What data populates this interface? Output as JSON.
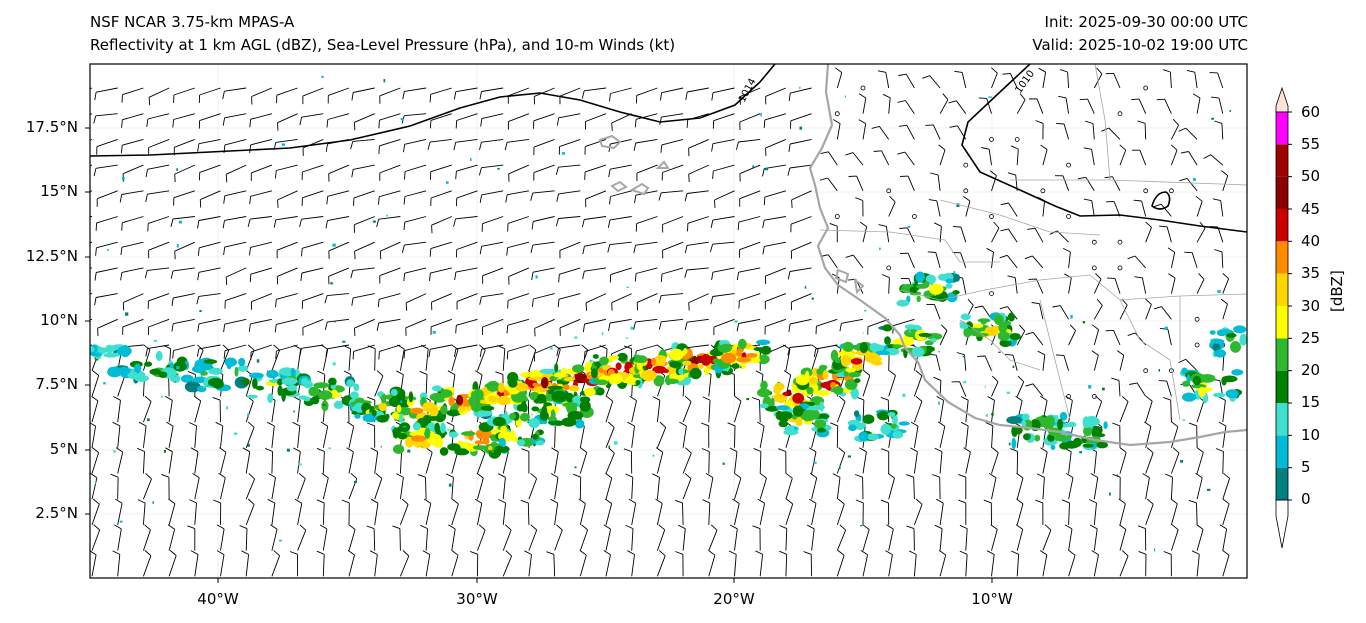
{
  "header": {
    "model": "NSF NCAR 3.75-km MPAS-A",
    "fields": "Reflectivity at 1 km AGL (dBZ), Sea-Level Pressure (hPa), and 10-m Winds (kt)",
    "init": "Init: 2025-09-30 00:00 UTC",
    "valid": "Valid: 2025-10-02 19:00 UTC"
  },
  "axes": {
    "lat_labels": [
      "17.5°N",
      "15°N",
      "12.5°N",
      "10°N",
      "7.5°N",
      "5°N",
      "2.5°N"
    ],
    "lon_labels": [
      "40°W",
      "30°W",
      "20°W",
      "10°W"
    ]
  },
  "isobars": {
    "labels": [
      "1014",
      "1010"
    ]
  },
  "colorbar": {
    "label": "[dBZ]",
    "ticks": [
      "0",
      "5",
      "10",
      "15",
      "20",
      "25",
      "30",
      "35",
      "40",
      "45",
      "50",
      "55",
      "60"
    ],
    "colors": [
      "#008080",
      "#00bcd4",
      "#40e0d0",
      "#008000",
      "#2eb82e",
      "#ffff00",
      "#ffd700",
      "#ff8c00",
      "#cc0000",
      "#8b0000",
      "#a00000",
      "#ff00ff",
      "#ffe4d6"
    ]
  },
  "colors": {
    "coastline": "#a6a6a6",
    "isobar": "#000000",
    "barb": "#000000"
  }
}
